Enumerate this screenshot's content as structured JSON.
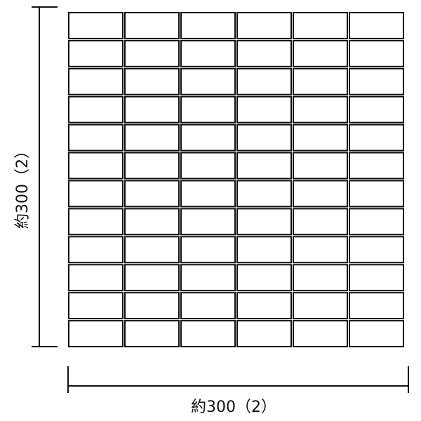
{
  "diagram": {
    "columns": 6,
    "rows": 12,
    "width_label": "約300（2）",
    "height_label": "約300（2）",
    "line_color": "#111111",
    "tile_fill": "#ffffff"
  }
}
